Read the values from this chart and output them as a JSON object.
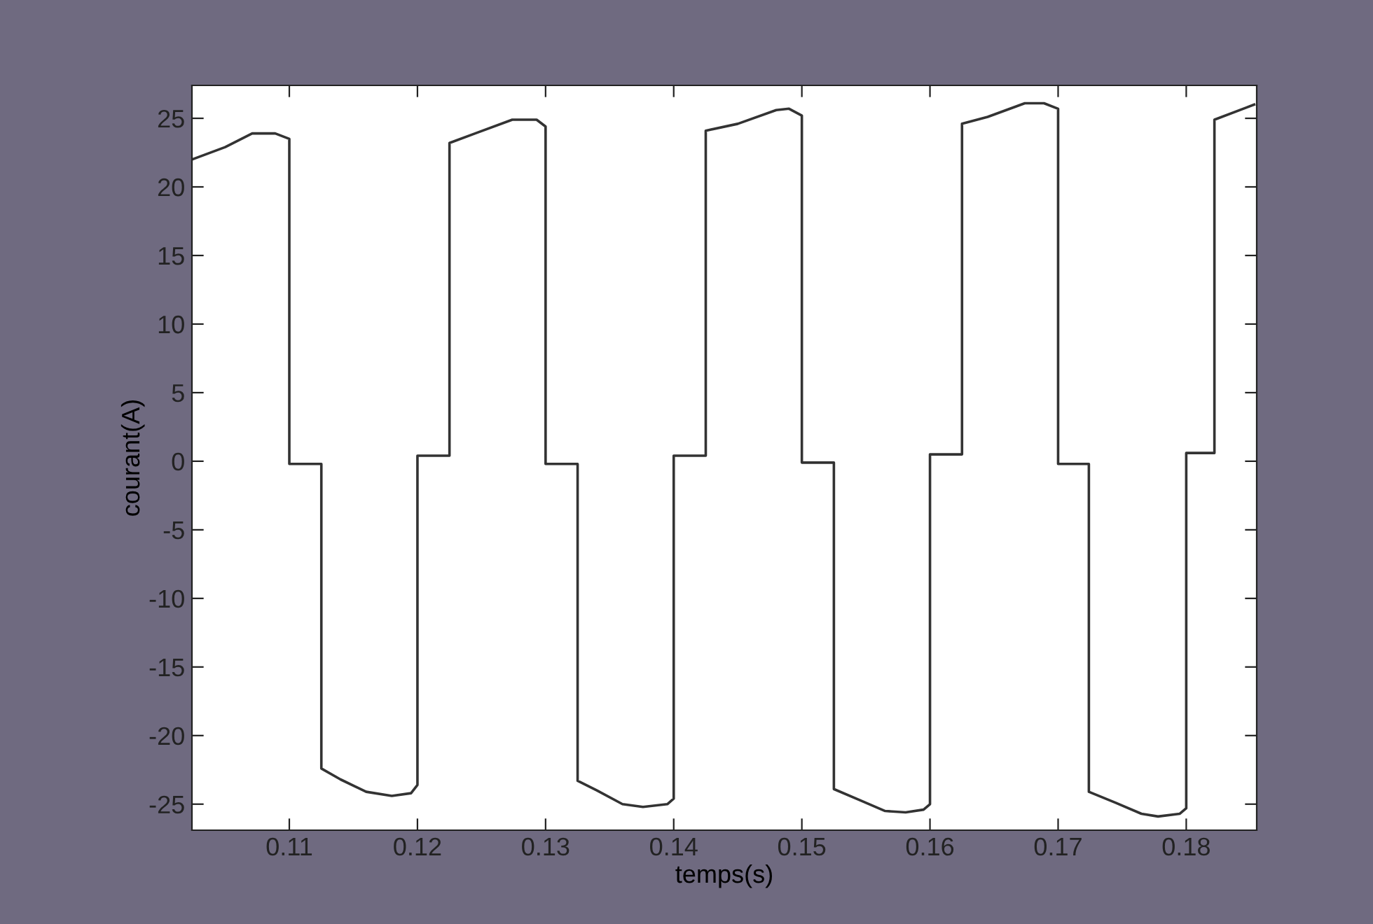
{
  "chart_data": {
    "type": "line",
    "xlabel": "temps(s)",
    "ylabel": "courant(A)",
    "xlim": [
      0.1024,
      0.1855
    ],
    "ylim": [
      -26.9,
      27.4
    ],
    "xticks": [
      0.11,
      0.12,
      0.13,
      0.14,
      0.15,
      0.16,
      0.17,
      0.18
    ],
    "yticks": [
      -25,
      -20,
      -15,
      -10,
      -5,
      0,
      5,
      10,
      15,
      20,
      25
    ],
    "grid": false,
    "legend": false,
    "marker": "none",
    "line_style": "solid",
    "series": [
      {
        "color": "#333333",
        "x": [
          0.1024,
          0.105,
          0.1071,
          0.1089,
          0.11,
          0.11,
          0.1125,
          0.1125,
          0.114,
          0.116,
          0.118,
          0.1195,
          0.12,
          0.12,
          0.1225,
          0.1225,
          0.1245,
          0.1274,
          0.1293,
          0.13,
          0.13,
          0.1325,
          0.1325,
          0.134,
          0.136,
          0.1376,
          0.1395,
          0.14,
          0.14,
          0.1425,
          0.1425,
          0.145,
          0.148,
          0.149,
          0.15,
          0.15,
          0.1525,
          0.1525,
          0.1545,
          0.1565,
          0.1581,
          0.1595,
          0.16,
          0.16,
          0.1625,
          0.1625,
          0.1645,
          0.1674,
          0.1689,
          0.17,
          0.17,
          0.1724,
          0.1724,
          0.1745,
          0.1765,
          0.1778,
          0.1795,
          0.18,
          0.18,
          0.1822,
          0.1822,
          0.1853
        ],
        "values": [
          22.0,
          22.9,
          23.9,
          23.9,
          23.5,
          -0.2,
          -0.2,
          -22.4,
          -23.2,
          -24.1,
          -24.4,
          -24.2,
          -23.6,
          0.4,
          0.4,
          23.2,
          23.9,
          24.9,
          24.9,
          24.4,
          -0.2,
          -0.2,
          -23.3,
          -24.0,
          -25.0,
          -25.2,
          -25.0,
          -24.6,
          0.4,
          0.4,
          24.1,
          24.6,
          25.6,
          25.7,
          25.2,
          -0.1,
          -0.1,
          -23.9,
          -24.7,
          -25.5,
          -25.6,
          -25.4,
          -25.0,
          0.5,
          0.5,
          24.6,
          25.1,
          26.1,
          26.1,
          25.7,
          -0.2,
          -0.2,
          -24.1,
          -24.9,
          -25.7,
          -25.9,
          -25.7,
          -25.3,
          0.6,
          0.6,
          24.9,
          26.0
        ]
      }
    ]
  }
}
